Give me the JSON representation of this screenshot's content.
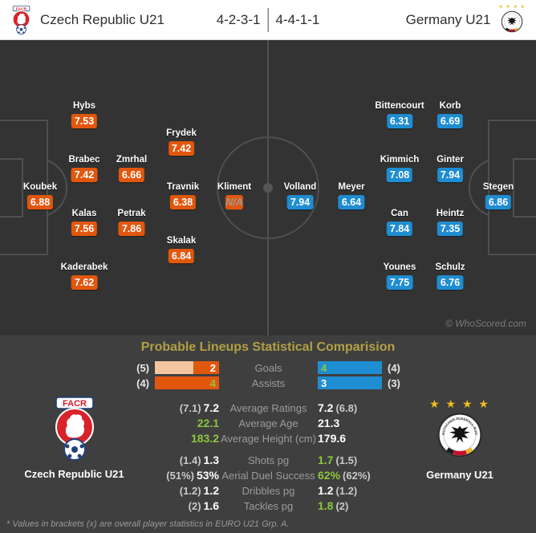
{
  "header": {
    "home_team": "Czech Republic U21",
    "home_formation": "4-2-3-1",
    "away_formation": "4-4-1-1",
    "away_team": "Germany U21"
  },
  "badges": {
    "home_crest_text": "FACR",
    "away_crest_ring": "DEUTSCHER FUSSBALL-BUND",
    "away_stars": "★ ★ ★ ★"
  },
  "pitch": {
    "watermark": "© WhoScored.com",
    "home_players": [
      {
        "name": "Koubek",
        "rating": "6.88"
      },
      {
        "name": "Hybs",
        "rating": "7.53"
      },
      {
        "name": "Brabec",
        "rating": "7.42"
      },
      {
        "name": "Kalas",
        "rating": "7.56"
      },
      {
        "name": "Kaderabek",
        "rating": "7.62"
      },
      {
        "name": "Zmrhal",
        "rating": "6.66"
      },
      {
        "name": "Petrak",
        "rating": "7.86"
      },
      {
        "name": "Frydek",
        "rating": "7.42"
      },
      {
        "name": "Travnik",
        "rating": "6.38"
      },
      {
        "name": "Skalak",
        "rating": "6.84"
      },
      {
        "name": "Kliment",
        "rating": "N/A"
      }
    ],
    "away_players": [
      {
        "name": "Stegen",
        "rating": "6.86"
      },
      {
        "name": "Korb",
        "rating": "6.69"
      },
      {
        "name": "Ginter",
        "rating": "7.94"
      },
      {
        "name": "Heintz",
        "rating": "7.35"
      },
      {
        "name": "Schulz",
        "rating": "6.76"
      },
      {
        "name": "Bittencourt",
        "rating": "6.31"
      },
      {
        "name": "Kimmich",
        "rating": "7.08"
      },
      {
        "name": "Can",
        "rating": "7.84"
      },
      {
        "name": "Younes",
        "rating": "7.75"
      },
      {
        "name": "Meyer",
        "rating": "6.64"
      },
      {
        "name": "Volland",
        "rating": "7.94"
      }
    ]
  },
  "stats": {
    "title": "Probable Lineups Statistical Comparision",
    "home_team_label": "Czech Republic U21",
    "away_team_label": "Germany U21",
    "bars": [
      {
        "label": "Goals",
        "home_bracket": "(5)",
        "home_value": "2",
        "home_fill_pct": 40,
        "home_green": false,
        "away_value": "4",
        "away_bracket": "(4)",
        "away_fill_pct": 100,
        "away_green": true
      },
      {
        "label": "Assists",
        "home_bracket": "(4)",
        "home_value": "4",
        "home_fill_pct": 100,
        "home_green": true,
        "away_value": "3",
        "away_bracket": "(3)",
        "away_fill_pct": 100,
        "away_green": false
      }
    ],
    "rows": [
      {
        "label": "Average Ratings",
        "home_bracket": "(7.1)",
        "home_value": "7.2",
        "home_green": false,
        "away_value": "7.2",
        "away_bracket": "(6.8)",
        "away_green": false
      },
      {
        "label": "Average Age",
        "home_bracket": "",
        "home_value": "22.1",
        "home_green": true,
        "away_value": "21.3",
        "away_bracket": "",
        "away_green": false
      },
      {
        "label": "Average Height (cm)",
        "home_bracket": "",
        "home_value": "183.2",
        "home_green": true,
        "away_value": "179.6",
        "away_bracket": "",
        "away_green": false
      },
      {
        "label": "Shots pg",
        "home_bracket": "(1.4)",
        "home_value": "1.3",
        "home_green": false,
        "away_value": "1.7",
        "away_bracket": "(1.5)",
        "away_green": true
      },
      {
        "label": "Aerial Duel Success",
        "home_bracket": "(51%)",
        "home_value": "53%",
        "home_green": false,
        "away_value": "62%",
        "away_bracket": "(62%)",
        "away_green": true
      },
      {
        "label": "Dribbles pg",
        "home_bracket": "(1.2)",
        "home_value": "1.2",
        "home_green": false,
        "away_value": "1.2",
        "away_bracket": "(1.2)",
        "away_green": false
      },
      {
        "label": "Tackles pg",
        "home_bracket": "(2)",
        "home_value": "1.6",
        "home_green": false,
        "away_value": "1.8",
        "away_bracket": "(2)",
        "away_green": true
      }
    ],
    "footnote": "* Values in brackets (x) are overall player statistics in EURO U21 Grp. A."
  },
  "colors": {
    "home_accent": "#e2570e",
    "home_bar_light": "#f4c5a1",
    "away_accent": "#1f8dd1",
    "highlight_green": "#8dc63f",
    "title_gold": "#b2a044",
    "pitch_bg": "#333333",
    "panel_bg": "#3f3f3f"
  }
}
